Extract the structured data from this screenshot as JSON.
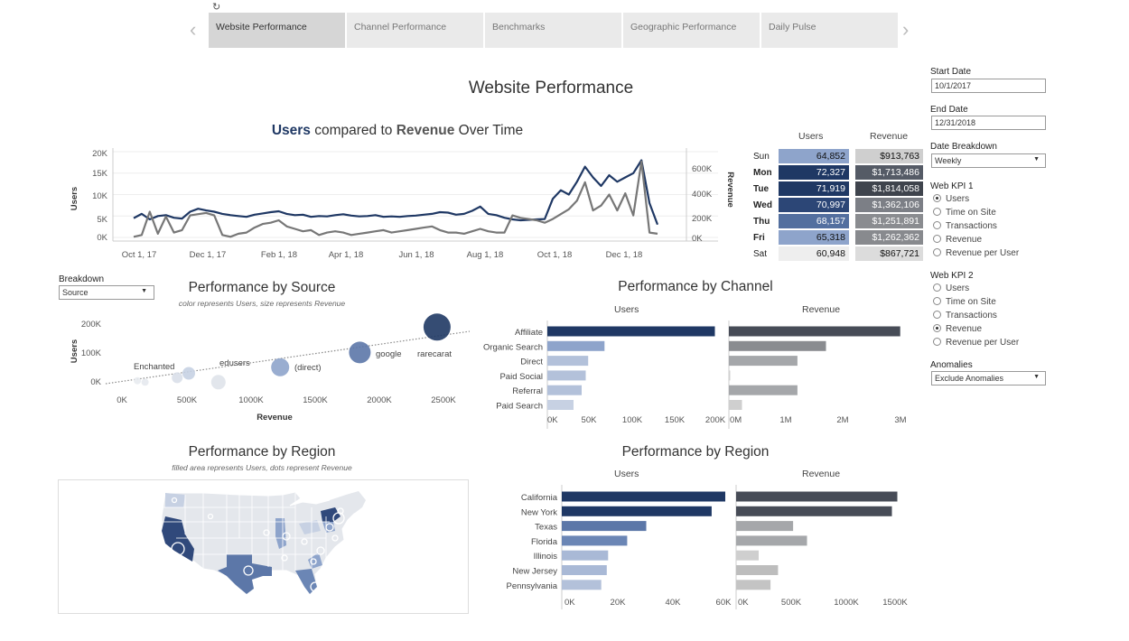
{
  "tabs": [
    {
      "label": "Website Performance",
      "active": true
    },
    {
      "label": "Channel Performance",
      "active": false
    },
    {
      "label": "Benchmarks",
      "active": false
    },
    {
      "label": "Geographic Performance",
      "active": false
    },
    {
      "label": "Daily Pulse",
      "active": false
    }
  ],
  "nav": {
    "prev": "‹",
    "next": "›",
    "refresh": "↻"
  },
  "page_title": "Website Performance",
  "time_chart": {
    "title_users": "Users",
    "title_mid": " compared to ",
    "title_revenue": "Revenue",
    "title_end": " Over Time",
    "y_left_label": "Users",
    "y_right_label": "Revenue",
    "y_left_ticks": [
      "20K",
      "15K",
      "10K",
      "5K",
      "0K"
    ],
    "y_right_ticks": [
      "600K",
      "400K",
      "200K",
      "0K"
    ],
    "x_ticks": [
      "Oct 1, 17",
      "Dec 1, 17",
      "Feb 1, 18",
      "Apr 1, 18",
      "Jun 1, 18",
      "Aug 1, 18",
      "Oct 1, 18",
      "Dec 1, 18"
    ]
  },
  "day_table": {
    "headers": {
      "users": "Users",
      "revenue": "Revenue"
    },
    "rows": [
      {
        "day": "Sun",
        "users": "64,852",
        "revenue": "$913,763",
        "bold": false
      },
      {
        "day": "Mon",
        "users": "72,327",
        "revenue": "$1,713,486",
        "bold": true
      },
      {
        "day": "Tue",
        "users": "71,919",
        "revenue": "$1,814,058",
        "bold": true
      },
      {
        "day": "Wed",
        "users": "70,997",
        "revenue": "$1,362,106",
        "bold": true
      },
      {
        "day": "Thu",
        "users": "68,157",
        "revenue": "$1,251,891",
        "bold": true
      },
      {
        "day": "Fri",
        "users": "65,318",
        "revenue": "$1,262,362",
        "bold": true
      },
      {
        "day": "Sat",
        "users": "60,948",
        "revenue": "$867,721",
        "bold": false
      }
    ]
  },
  "controls": {
    "start_date_label": "Start Date",
    "start_date": "10/1/2017",
    "end_date_label": "End Date",
    "end_date": "12/31/2018",
    "date_breakdown_label": "Date Breakdown",
    "date_breakdown": "Weekly",
    "kpi1_label": "Web KPI 1",
    "kpi1_options": [
      "Users",
      "Time on Site",
      "Transactions",
      "Revenue",
      "Revenue per User"
    ],
    "kpi1_selected": "Users",
    "kpi2_label": "Web KPI 2",
    "kpi2_options": [
      "Users",
      "Time on Site",
      "Transactions",
      "Revenue",
      "Revenue per User"
    ],
    "kpi2_selected": "Revenue",
    "anomalies_label": "Anomalies",
    "anomalies": "Exclude Anomalies"
  },
  "breakdown": {
    "label": "Breakdown",
    "value": "Source"
  },
  "source_chart": {
    "title": "Performance by Source",
    "note": "color represents Users, size represents Revenue",
    "x_label": "Revenue",
    "y_label": "Users",
    "y_ticks": [
      "200K",
      "100K",
      "0K"
    ],
    "x_ticks": [
      "0K",
      "500K",
      "1000K",
      "1500K",
      "2000K",
      "2500K"
    ],
    "labels": [
      "Enchanted",
      "edusers",
      "(direct)",
      "google",
      "rarecarat"
    ]
  },
  "channel_chart": {
    "title": "Performance by Channel",
    "users_header": "Users",
    "revenue_header": "Revenue",
    "users_ticks": [
      "0K",
      "50K",
      "100K",
      "150K",
      "200K"
    ],
    "revenue_ticks": [
      "0M",
      "1M",
      "2M",
      "3M"
    ]
  },
  "map_section": {
    "title": "Performance by Region",
    "note": "filled area represents Users, dots represent Revenue"
  },
  "region_chart": {
    "title": "Performance by Region",
    "users_header": "Users",
    "revenue_header": "Revenue",
    "users_ticks": [
      "0K",
      "20K",
      "40K",
      "60K"
    ],
    "revenue_ticks": [
      "0K",
      "500K",
      "1000K",
      "1500K"
    ]
  },
  "colors": {
    "navy": "#1f3864",
    "grey_line": "#777777",
    "accent": "#1f3864"
  },
  "chart_data": [
    {
      "type": "line",
      "title": "Users compared to Revenue Over Time",
      "series": [
        {
          "name": "Users",
          "axis": "left",
          "values": [
            4500,
            5500,
            4200,
            5000,
            5200,
            4600,
            4400,
            6000,
            6700,
            6300,
            6000,
            5500,
            5200,
            5000,
            4800,
            5300,
            5600,
            5900,
            6100,
            5500,
            5200,
            5300,
            4800,
            5000,
            4900,
            5200,
            5400,
            5100,
            4900,
            5000,
            5200,
            4800,
            4900,
            4800,
            5000,
            5100,
            5300,
            5500,
            5900,
            5800,
            5300,
            5500,
            6200,
            7200,
            5500,
            5200,
            4600,
            4200,
            4000,
            4100,
            4200,
            4300,
            9000,
            11000,
            10000,
            13000,
            16500,
            14000,
            12000,
            14500,
            13000,
            14000,
            15000,
            18000,
            8000,
            3000
          ]
        },
        {
          "name": "Revenue",
          "axis": "right",
          "values": [
            5000,
            20000,
            210000,
            30000,
            170000,
            40000,
            60000,
            180000,
            190000,
            200000,
            180000,
            20000,
            5000,
            30000,
            40000,
            80000,
            110000,
            120000,
            140000,
            90000,
            70000,
            50000,
            60000,
            20000,
            40000,
            50000,
            40000,
            20000,
            30000,
            40000,
            50000,
            60000,
            40000,
            50000,
            60000,
            70000,
            80000,
            90000,
            60000,
            40000,
            40000,
            30000,
            50000,
            70000,
            50000,
            40000,
            40000,
            180000,
            160000,
            150000,
            140000,
            120000,
            150000,
            190000,
            230000,
            300000,
            450000,
            220000,
            260000,
            350000,
            220000,
            360000,
            180000,
            620000,
            40000,
            30000
          ]
        }
      ],
      "xlabel": "",
      "ylabel": "Users",
      "ylabel_right": "Revenue",
      "ylim": [
        0,
        20000
      ],
      "ylim_right": [
        0,
        700000
      ]
    },
    {
      "type": "scatter",
      "title": "Performance by Source",
      "points": [
        {
          "name": "rarecarat",
          "revenue": 2450000,
          "users": 190000
        },
        {
          "name": "google",
          "revenue": 1850000,
          "users": 105000
        },
        {
          "name": "(direct)",
          "revenue": 1230000,
          "users": 55000
        },
        {
          "name": "edusers",
          "revenue": 750000,
          "users": 5000
        },
        {
          "name": "Enchanted",
          "revenue": 120000,
          "users": 10000
        },
        {
          "name": "",
          "revenue": 520000,
          "users": 35000
        },
        {
          "name": "",
          "revenue": 430000,
          "users": 20000
        },
        {
          "name": "",
          "revenue": 180000,
          "users": 5000
        }
      ],
      "xlabel": "Revenue",
      "ylabel": "Users",
      "xlim": [
        -100000,
        2700000
      ],
      "ylim": [
        -20000,
        230000
      ]
    },
    {
      "type": "bar",
      "title": "Performance by Channel",
      "categories": [
        "Affiliate",
        "Organic Search",
        "Direct",
        "Paid Social",
        "Referral",
        "Paid Search"
      ],
      "series": [
        {
          "name": "Users",
          "values": [
            205000,
            70000,
            50000,
            47000,
            42000,
            32000
          ],
          "max": 210000
        },
        {
          "name": "Revenue",
          "values": [
            3000000,
            1700000,
            1200000,
            20000,
            1200000,
            230000
          ],
          "max": 3100000
        }
      ]
    },
    {
      "type": "bar",
      "title": "Performance by Region",
      "categories": [
        "California",
        "New York",
        "Texas",
        "Florida",
        "Illinois",
        "New Jersey",
        "Pennsylvania"
      ],
      "series": [
        {
          "name": "Users",
          "values": [
            60000,
            55000,
            31000,
            24000,
            17000,
            16500,
            14500
          ],
          "max": 62000
        },
        {
          "name": "Revenue",
          "values": [
            1500000,
            1450000,
            530000,
            660000,
            210000,
            390000,
            320000
          ],
          "max": 1580000
        }
      ]
    }
  ]
}
